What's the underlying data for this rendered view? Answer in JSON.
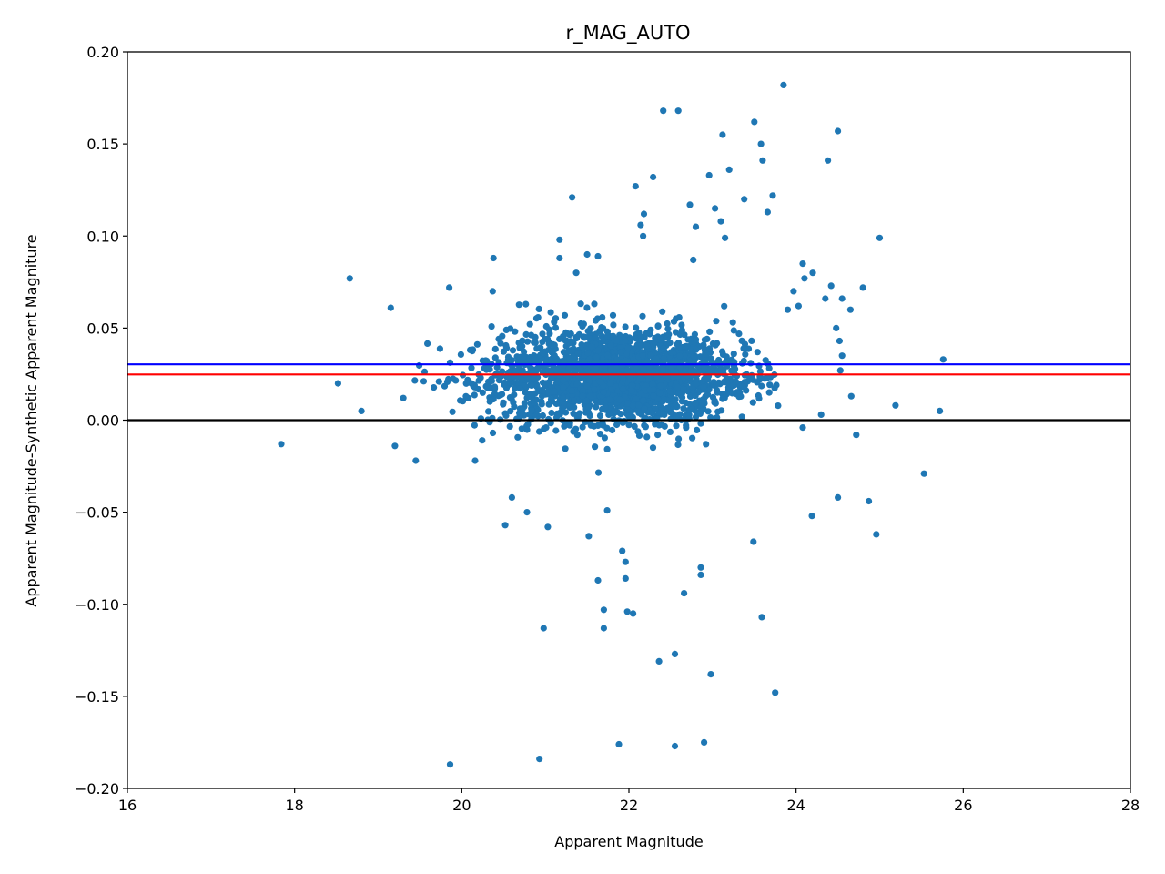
{
  "chart_data": {
    "type": "scatter",
    "title": "r_MAG_AUTO",
    "xlabel": "Apparent Magnitude",
    "ylabel": "Apparent Magnitude-Synthetic Apparent Magniture",
    "xlim": [
      16,
      28
    ],
    "ylim": [
      -0.2,
      0.2
    ],
    "xticks": [
      16,
      18,
      20,
      22,
      24,
      26,
      28
    ],
    "yticks": [
      -0.2,
      -0.15,
      -0.1,
      -0.05,
      0.0,
      0.05,
      0.1,
      0.15,
      0.2
    ],
    "xtick_labels": [
      "16",
      "18",
      "20",
      "22",
      "24",
      "26",
      "28"
    ],
    "ytick_labels": [
      "−0.20",
      "−0.15",
      "−0.10",
      "−0.05",
      "0.00",
      "0.05",
      "0.10",
      "0.15",
      "0.20"
    ],
    "grid": false,
    "point_color": "#1f77b4",
    "reference_lines": [
      {
        "y": 0.0,
        "color": "#000000"
      },
      {
        "y": 0.0248,
        "color": "#ff0000"
      },
      {
        "y": 0.0303,
        "color": "#0000ff"
      }
    ],
    "dense_cluster": {
      "x_range": [
        19.2,
        23.8
      ],
      "x_center": 21.9,
      "y_center": 0.024,
      "y_spread": 0.013,
      "approx_points": 2200
    },
    "outliers": [
      [
        17.84,
        -0.013
      ],
      [
        18.52,
        0.02
      ],
      [
        18.66,
        0.077
      ],
      [
        19.15,
        0.061
      ],
      [
        18.8,
        0.005
      ],
      [
        19.3,
        0.012
      ],
      [
        19.2,
        -0.014
      ],
      [
        19.45,
        -0.022
      ],
      [
        19.85,
        0.072
      ],
      [
        20.38,
        0.088
      ],
      [
        20.37,
        0.07
      ],
      [
        20.16,
        -0.022
      ],
      [
        20.52,
        -0.057
      ],
      [
        20.6,
        -0.042
      ],
      [
        20.78,
        -0.05
      ],
      [
        20.98,
        -0.113
      ],
      [
        20.93,
        -0.184
      ],
      [
        19.86,
        -0.187
      ],
      [
        21.03,
        -0.058
      ],
      [
        21.17,
        0.098
      ],
      [
        21.17,
        0.088
      ],
      [
        21.32,
        0.121
      ],
      [
        21.37,
        0.08
      ],
      [
        21.5,
        0.09
      ],
      [
        21.63,
        0.089
      ],
      [
        21.52,
        -0.063
      ],
      [
        21.63,
        -0.087
      ],
      [
        21.7,
        -0.103
      ],
      [
        21.7,
        -0.113
      ],
      [
        21.74,
        -0.049
      ],
      [
        21.88,
        -0.176
      ],
      [
        21.92,
        -0.071
      ],
      [
        21.96,
        -0.086
      ],
      [
        21.96,
        -0.077
      ],
      [
        21.98,
        -0.104
      ],
      [
        22.05,
        -0.105
      ],
      [
        22.08,
        0.127
      ],
      [
        22.18,
        0.112
      ],
      [
        22.14,
        0.106
      ],
      [
        22.17,
        0.1
      ],
      [
        22.29,
        0.132
      ],
      [
        22.41,
        0.168
      ],
      [
        22.59,
        0.168
      ],
      [
        22.36,
        -0.131
      ],
      [
        22.55,
        -0.127
      ],
      [
        22.55,
        -0.177
      ],
      [
        22.66,
        -0.094
      ],
      [
        22.73,
        0.117
      ],
      [
        22.77,
        0.087
      ],
      [
        22.8,
        0.105
      ],
      [
        22.86,
        -0.08
      ],
      [
        22.86,
        -0.084
      ],
      [
        22.9,
        -0.175
      ],
      [
        22.98,
        -0.138
      ],
      [
        22.96,
        0.133
      ],
      [
        23.03,
        0.115
      ],
      [
        23.12,
        0.155
      ],
      [
        23.1,
        0.108
      ],
      [
        23.2,
        0.136
      ],
      [
        23.15,
        0.099
      ],
      [
        23.38,
        0.12
      ],
      [
        23.5,
        0.162
      ],
      [
        23.58,
        0.15
      ],
      [
        23.6,
        0.141
      ],
      [
        23.66,
        0.113
      ],
      [
        23.72,
        0.122
      ],
      [
        23.85,
        0.182
      ],
      [
        23.59,
        -0.107
      ],
      [
        23.75,
        -0.148
      ],
      [
        23.49,
        -0.066
      ],
      [
        24.38,
        0.141
      ],
      [
        24.5,
        0.157
      ],
      [
        24.2,
        0.08
      ],
      [
        24.1,
        0.077
      ],
      [
        24.35,
        0.066
      ],
      [
        24.42,
        0.073
      ],
      [
        24.55,
        0.066
      ],
      [
        24.65,
        0.06
      ],
      [
        24.8,
        0.072
      ],
      [
        24.72,
        -0.008
      ],
      [
        24.66,
        0.013
      ],
      [
        24.5,
        -0.042
      ],
      [
        24.87,
        -0.044
      ],
      [
        24.96,
        -0.062
      ],
      [
        25.0,
        0.099
      ],
      [
        25.19,
        0.008
      ],
      [
        25.53,
        -0.029
      ],
      [
        25.72,
        0.005
      ],
      [
        25.76,
        0.033
      ],
      [
        24.19,
        -0.052
      ],
      [
        24.08,
        -0.004
      ],
      [
        24.3,
        0.003
      ],
      [
        24.48,
        0.05
      ],
      [
        24.52,
        0.043
      ],
      [
        24.55,
        0.035
      ],
      [
        24.53,
        0.027
      ],
      [
        24.08,
        0.085
      ],
      [
        23.97,
        0.07
      ],
      [
        24.03,
        0.062
      ],
      [
        23.9,
        0.06
      ]
    ]
  }
}
